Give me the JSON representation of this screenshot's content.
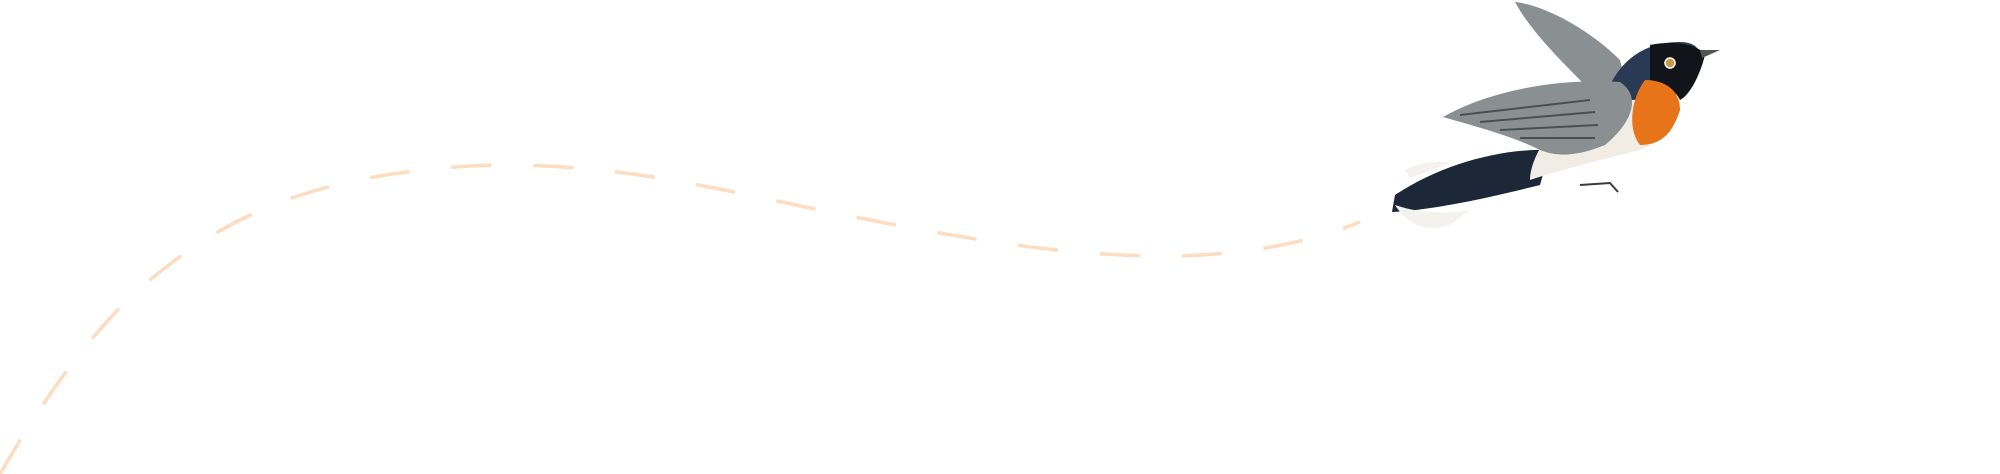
{
  "background_color": "#ffffff",
  "flight_path": {
    "style": "dashed",
    "color": "#fddcbf"
  },
  "illustration": {
    "subject": "bird-in-flight",
    "colors": {
      "throat": "#e8741a",
      "head": "#2a3a55",
      "mask": "#111418",
      "belly": "#f1ede4",
      "wing": "#8a8f92",
      "tail": "#1c2838",
      "tail_tips": "#f4f2ee"
    }
  }
}
